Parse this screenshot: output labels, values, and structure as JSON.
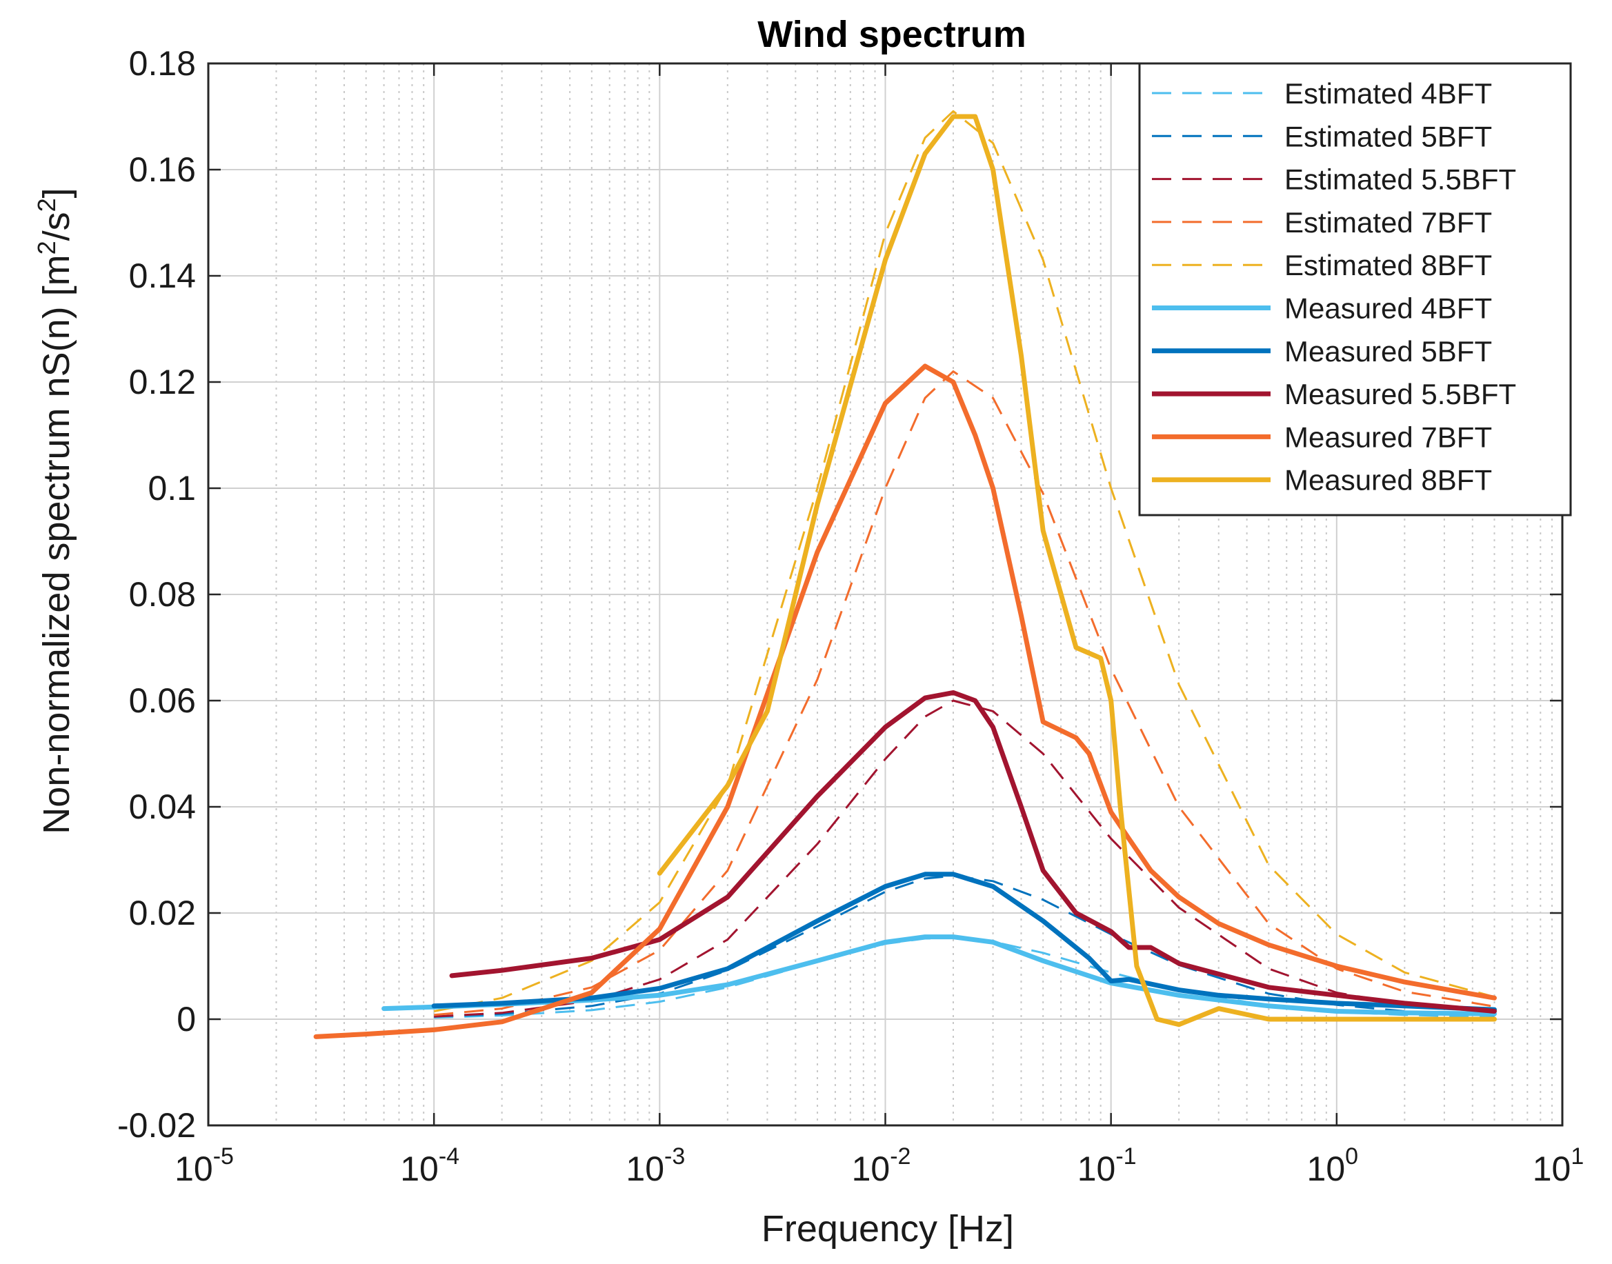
{
  "chart_data": {
    "type": "line",
    "title": "Wind spectrum",
    "xlabel": "Frequency [Hz]",
    "ylabel": "Non-normalized spectrum nS(n) [m²/s²]",
    "ylabel_parts": {
      "pre": "Non-normalized spectrum nS(n) [m",
      "sup1": "2",
      "mid": "/s",
      "sup2": "2",
      "post": "]"
    },
    "xscale": "log",
    "xlim": [
      1e-05,
      10
    ],
    "ylim": [
      -0.02,
      0.18
    ],
    "grid": true,
    "legend_position": "top-right",
    "x_ticks": [
      {
        "base": "10",
        "exp": "-5",
        "value": 1e-05
      },
      {
        "base": "10",
        "exp": "-4",
        "value": 0.0001
      },
      {
        "base": "10",
        "exp": "-3",
        "value": 0.001
      },
      {
        "base": "10",
        "exp": "-2",
        "value": 0.01
      },
      {
        "base": "10",
        "exp": "-1",
        "value": 0.1
      },
      {
        "base": "10",
        "exp": "0",
        "value": 1
      },
      {
        "base": "10",
        "exp": "1",
        "value": 10
      }
    ],
    "y_ticks": [
      {
        "label": "-0.02",
        "value": -0.02
      },
      {
        "label": "0",
        "value": 0
      },
      {
        "label": "0.02",
        "value": 0.02
      },
      {
        "label": "0.04",
        "value": 0.04
      },
      {
        "label": "0.06",
        "value": 0.06
      },
      {
        "label": "0.08",
        "value": 0.08
      },
      {
        "label": "0.1",
        "value": 0.1
      },
      {
        "label": "0.12",
        "value": 0.12
      },
      {
        "label": "0.14",
        "value": 0.14
      },
      {
        "label": "0.16",
        "value": 0.16
      },
      {
        "label": "0.18",
        "value": 0.18
      }
    ],
    "series": [
      {
        "name": "Estimated 4BFT",
        "style": "dashed",
        "color": "#4DBEEE",
        "x": [
          0.0001,
          0.0002,
          0.0005,
          0.001,
          0.002,
          0.005,
          0.01,
          0.015,
          0.02,
          0.03,
          0.05,
          0.1,
          0.2,
          0.5,
          1,
          2,
          5
        ],
        "y": [
          0.0003,
          0.0007,
          0.0017,
          0.0033,
          0.006,
          0.0108,
          0.0142,
          0.0152,
          0.0153,
          0.0146,
          0.0125,
          0.0088,
          0.0055,
          0.0025,
          0.0014,
          0.0008,
          0.0004
        ]
      },
      {
        "name": "Estimated 5BFT",
        "style": "dashed",
        "color": "#0072BD",
        "x": [
          0.0001,
          0.0002,
          0.0005,
          0.001,
          0.002,
          0.005,
          0.01,
          0.015,
          0.02,
          0.03,
          0.05,
          0.1,
          0.2,
          0.5,
          1,
          2,
          5
        ],
        "y": [
          0.0005,
          0.001,
          0.0025,
          0.0048,
          0.0092,
          0.0175,
          0.024,
          0.0265,
          0.027,
          0.026,
          0.0225,
          0.016,
          0.0102,
          0.0048,
          0.0027,
          0.0015,
          0.0007
        ]
      },
      {
        "name": "Estimated 5.5BFT",
        "style": "dashed",
        "color": "#A2142F",
        "x": [
          0.0001,
          0.0002,
          0.0005,
          0.001,
          0.002,
          0.005,
          0.01,
          0.015,
          0.02,
          0.03,
          0.05,
          0.1,
          0.2,
          0.5,
          1,
          2,
          5
        ],
        "y": [
          0.0005,
          0.0012,
          0.0035,
          0.0075,
          0.015,
          0.033,
          0.049,
          0.057,
          0.06,
          0.058,
          0.05,
          0.034,
          0.021,
          0.0095,
          0.005,
          0.0028,
          0.0013
        ]
      },
      {
        "name": "Estimated 7BFT",
        "style": "dashed",
        "color": "#F36C2C",
        "x": [
          0.0001,
          0.0002,
          0.0005,
          0.001,
          0.002,
          0.005,
          0.01,
          0.015,
          0.02,
          0.03,
          0.05,
          0.1,
          0.2,
          0.5,
          1,
          2,
          5
        ],
        "y": [
          0.0008,
          0.002,
          0.006,
          0.013,
          0.028,
          0.064,
          0.1,
          0.117,
          0.122,
          0.117,
          0.099,
          0.066,
          0.04,
          0.018,
          0.0095,
          0.0052,
          0.0024
        ]
      },
      {
        "name": "Estimated 8BFT",
        "style": "dashed",
        "color": "#EDB120",
        "x": [
          0.0001,
          0.0002,
          0.0005,
          0.001,
          0.002,
          0.005,
          0.01,
          0.015,
          0.02,
          0.03,
          0.05,
          0.1,
          0.2,
          0.5,
          1,
          2,
          5
        ],
        "y": [
          0.0015,
          0.004,
          0.011,
          0.022,
          0.044,
          0.1,
          0.148,
          0.166,
          0.171,
          0.165,
          0.143,
          0.1,
          0.063,
          0.029,
          0.016,
          0.0088,
          0.0042
        ]
      },
      {
        "name": "Measured 4BFT",
        "style": "solid",
        "color": "#4DBEEE",
        "x": [
          6e-05,
          0.0001,
          0.0002,
          0.0005,
          0.001,
          0.002,
          0.005,
          0.01,
          0.015,
          0.02,
          0.03,
          0.05,
          0.1,
          0.2,
          0.5,
          1,
          2,
          5
        ],
        "y": [
          0.002,
          0.0023,
          0.0028,
          0.0036,
          0.0045,
          0.0065,
          0.011,
          0.0145,
          0.0155,
          0.0155,
          0.0145,
          0.011,
          0.0068,
          0.0045,
          0.0025,
          0.0015,
          0.0012,
          0.001
        ]
      },
      {
        "name": "Measured 5BFT",
        "style": "solid",
        "color": "#0072BD",
        "x": [
          0.0001,
          0.0002,
          0.0005,
          0.001,
          0.002,
          0.005,
          0.01,
          0.015,
          0.02,
          0.03,
          0.05,
          0.08,
          0.1,
          0.12,
          0.2,
          0.3,
          0.5,
          1,
          2,
          5
        ],
        "y": [
          0.0025,
          0.003,
          0.004,
          0.0058,
          0.0095,
          0.0185,
          0.025,
          0.0273,
          0.0273,
          0.025,
          0.0185,
          0.0115,
          0.0072,
          0.0075,
          0.0055,
          0.0045,
          0.0038,
          0.003,
          0.0025,
          0.0018
        ]
      },
      {
        "name": "Measured 5.5BFT",
        "style": "solid",
        "color": "#A2142F",
        "x": [
          0.00012,
          0.0002,
          0.0005,
          0.001,
          0.002,
          0.005,
          0.01,
          0.015,
          0.02,
          0.025,
          0.03,
          0.04,
          0.05,
          0.07,
          0.1,
          0.12,
          0.15,
          0.2,
          0.3,
          0.5,
          1,
          2,
          5
        ],
        "y": [
          0.0082,
          0.0092,
          0.0115,
          0.015,
          0.023,
          0.042,
          0.055,
          0.0605,
          0.0615,
          0.06,
          0.055,
          0.04,
          0.028,
          0.02,
          0.0165,
          0.0135,
          0.0135,
          0.0105,
          0.0085,
          0.006,
          0.0045,
          0.003,
          0.0015
        ]
      },
      {
        "name": "Measured 7BFT",
        "style": "solid",
        "color": "#F36C2C",
        "x": [
          3e-05,
          5e-05,
          0.0001,
          0.0002,
          0.0005,
          0.001,
          0.002,
          0.005,
          0.01,
          0.015,
          0.02,
          0.025,
          0.03,
          0.04,
          0.05,
          0.07,
          0.08,
          0.1,
          0.12,
          0.15,
          0.2,
          0.3,
          0.5,
          1,
          2,
          5
        ],
        "y": [
          -0.0033,
          -0.0028,
          -0.002,
          -0.0005,
          0.005,
          0.017,
          0.04,
          0.088,
          0.116,
          0.123,
          0.12,
          0.11,
          0.1,
          0.076,
          0.056,
          0.053,
          0.05,
          0.039,
          0.034,
          0.028,
          0.023,
          0.018,
          0.014,
          0.01,
          0.007,
          0.004
        ]
      },
      {
        "name": "Measured 8BFT",
        "style": "solid",
        "color": "#EDB120",
        "x": [
          0.001,
          0.002,
          0.003,
          0.005,
          0.01,
          0.015,
          0.02,
          0.025,
          0.03,
          0.04,
          0.05,
          0.07,
          0.09,
          0.1,
          0.11,
          0.13,
          0.16,
          0.2,
          0.3,
          0.5,
          1,
          2,
          5
        ],
        "y": [
          0.0275,
          0.044,
          0.058,
          0.097,
          0.143,
          0.163,
          0.17,
          0.17,
          0.16,
          0.125,
          0.092,
          0.07,
          0.068,
          0.06,
          0.04,
          0.01,
          0.0,
          -0.001,
          0.002,
          0.0,
          0.0,
          0.0,
          0.0
        ]
      }
    ]
  }
}
